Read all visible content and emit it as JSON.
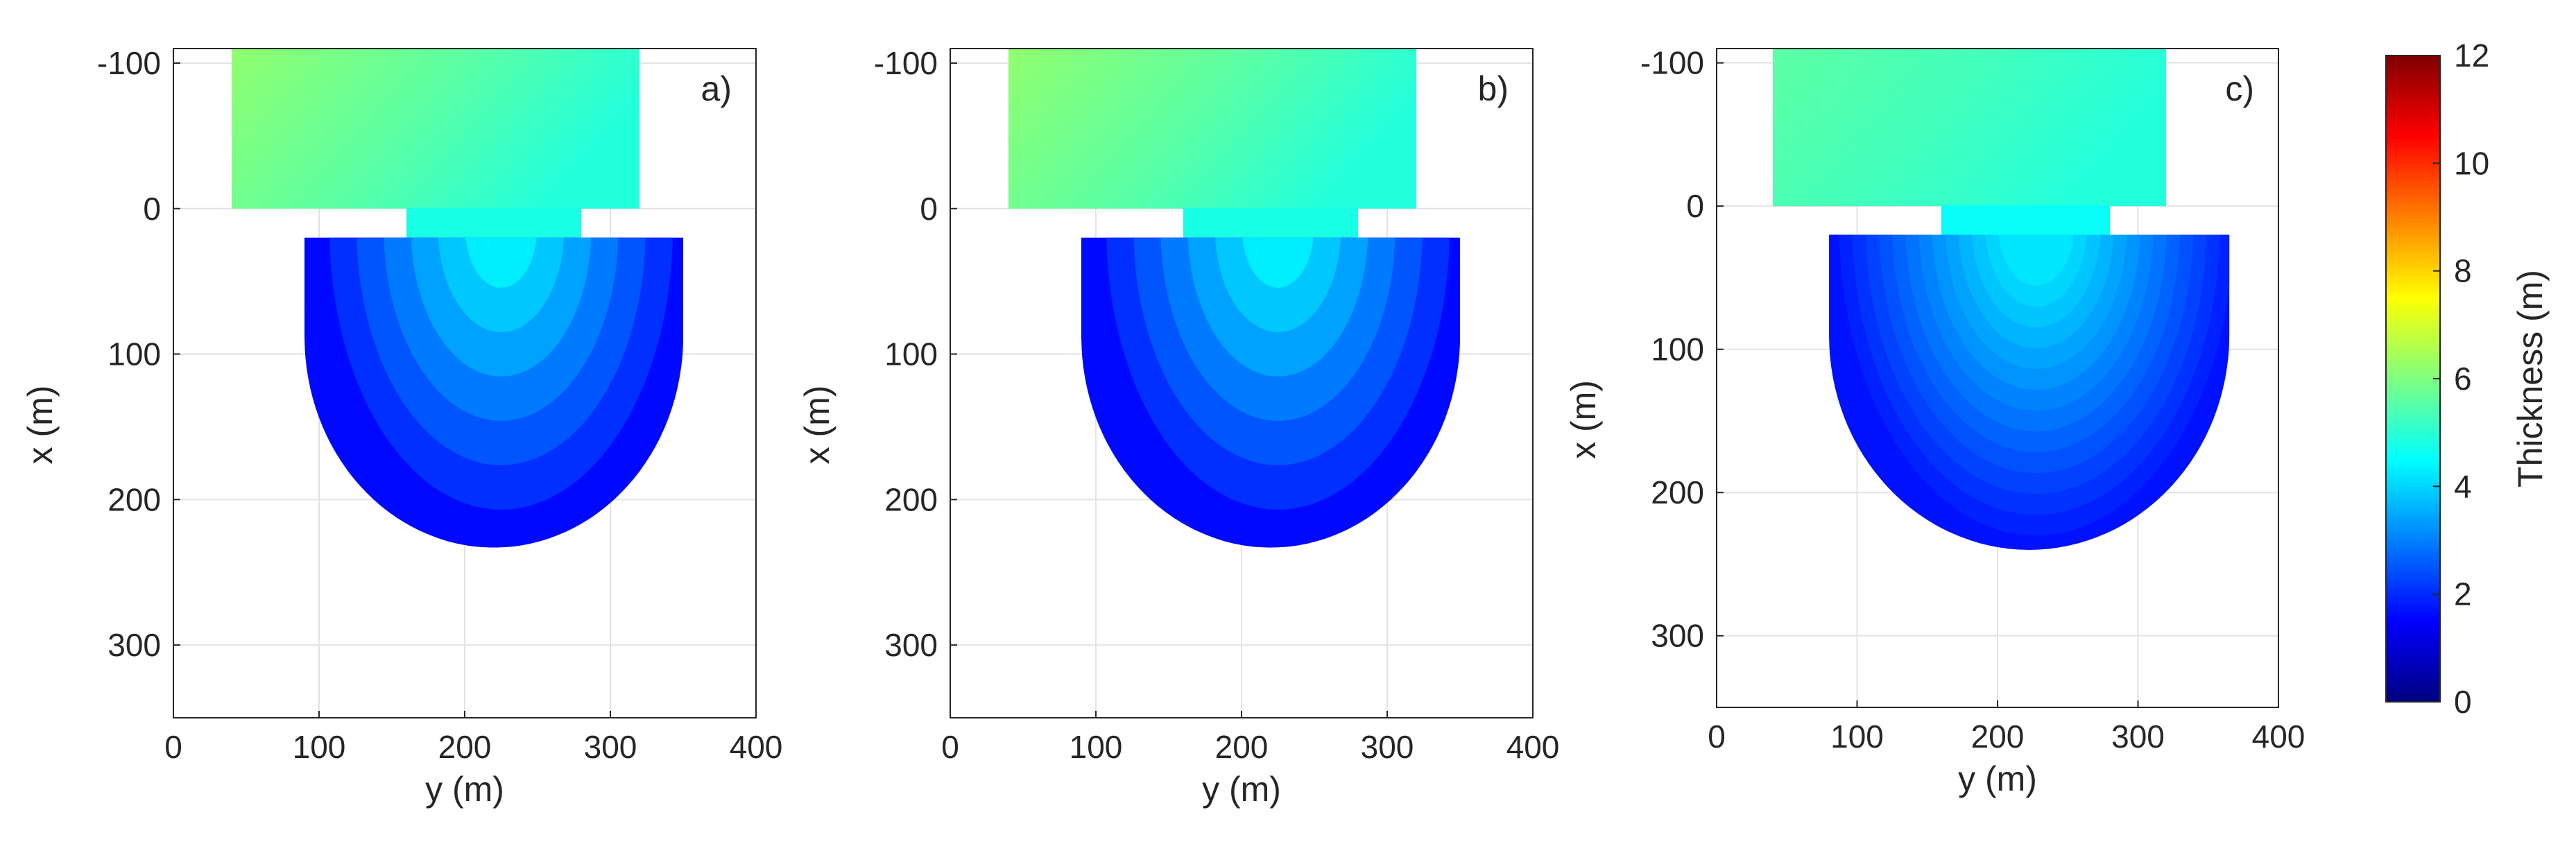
{
  "chart_data": [
    {
      "type": "heatmap",
      "panel_label": "a)",
      "xlabel": "y (m)",
      "ylabel": "x (m)",
      "xlim": [
        0,
        400
      ],
      "ylim": [
        -110,
        350
      ],
      "y_reversed": true,
      "xticks": [
        0,
        100,
        200,
        300,
        400
      ],
      "yticks": [
        -100,
        0,
        100,
        200,
        300
      ],
      "grid": true,
      "colorscale": "jet",
      "clim": [
        0,
        12
      ],
      "regions": {
        "reservoir": {
          "y_range": [
            40,
            320
          ],
          "x_range": [
            -110,
            0
          ],
          "thickness_left": 6.2,
          "thickness_right": 4.9
        },
        "channel": {
          "y_range": [
            160,
            280
          ],
          "x_range": [
            0,
            20
          ],
          "thickness": 4.8
        },
        "fan": {
          "y_range": [
            90,
            350
          ],
          "x_top": 20,
          "x_bottom": 233,
          "thickness_center": 4.3,
          "thickness_edge": 1.6,
          "pattern": "banded"
        }
      }
    },
    {
      "type": "heatmap",
      "panel_label": "b)",
      "xlabel": "y (m)",
      "ylabel": "x (m)",
      "xlim": [
        0,
        400
      ],
      "ylim": [
        -110,
        350
      ],
      "y_reversed": true,
      "xticks": [
        0,
        100,
        200,
        300,
        400
      ],
      "yticks": [
        -100,
        0,
        100,
        200,
        300
      ],
      "grid": true,
      "colorscale": "jet",
      "clim": [
        0,
        12
      ],
      "regions": {
        "reservoir": {
          "y_range": [
            40,
            320
          ],
          "x_range": [
            -110,
            0
          ],
          "thickness_left": 6.2,
          "thickness_right": 4.9
        },
        "channel": {
          "y_range": [
            160,
            280
          ],
          "x_range": [
            0,
            20
          ],
          "thickness": 4.8
        },
        "fan": {
          "y_range": [
            90,
            350
          ],
          "x_top": 20,
          "x_bottom": 233,
          "thickness_center": 4.3,
          "thickness_edge": 1.6,
          "pattern": "banded"
        }
      }
    },
    {
      "type": "heatmap",
      "panel_label": "c)",
      "xlabel": "y (m)",
      "ylabel": "x (m)",
      "xlim": [
        0,
        400
      ],
      "ylim": [
        -110,
        350
      ],
      "y_reversed": true,
      "xticks": [
        0,
        100,
        200,
        300,
        400
      ],
      "yticks": [
        -100,
        0,
        100,
        200,
        300
      ],
      "grid": true,
      "colorscale": "jet",
      "clim": [
        0,
        12
      ],
      "regions": {
        "reservoir": {
          "y_range": [
            40,
            320
          ],
          "x_range": [
            -110,
            0
          ],
          "thickness_left": 5.6,
          "thickness_right": 4.9
        },
        "channel": {
          "y_range": [
            160,
            280
          ],
          "x_range": [
            0,
            20
          ],
          "thickness": 4.6
        },
        "fan": {
          "y_range": [
            80,
            365
          ],
          "x_top": 20,
          "x_bottom": 240,
          "thickness_center": 4.2,
          "thickness_edge": 1.7,
          "pattern": "smooth"
        }
      }
    }
  ],
  "colorbar": {
    "label": "Thickness (m)",
    "range": [
      0,
      12
    ],
    "ticks": [
      0,
      2,
      4,
      6,
      8,
      10,
      12
    ],
    "colorscale": "jet"
  }
}
